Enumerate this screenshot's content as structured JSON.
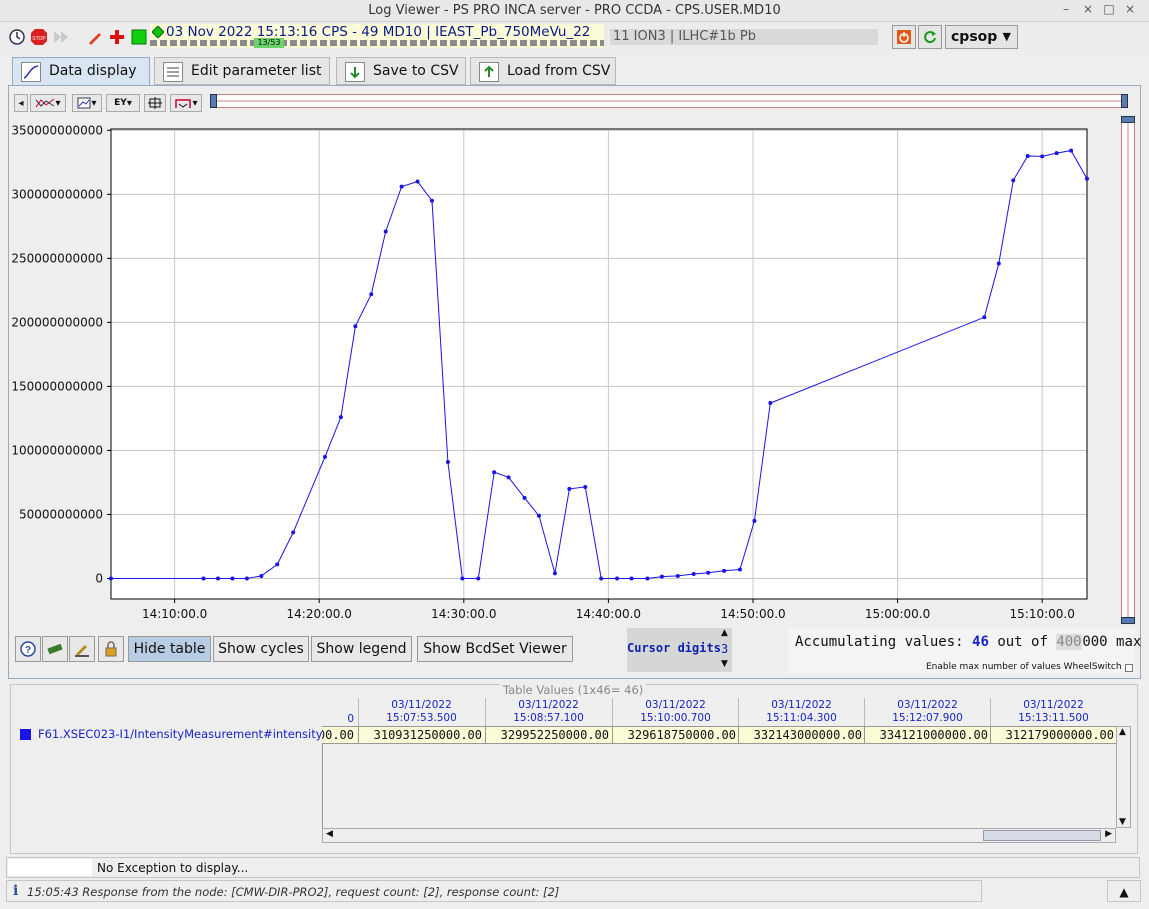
{
  "window": {
    "title": "Log Viewer - PS PRO INCA server - PRO CCDA  - CPS.USER.MD10",
    "controls": [
      "–",
      "×",
      "□",
      "×"
    ]
  },
  "toolbar": {
    "datetime": "03 Nov 2022  15:13:16  CPS - 49 MD10 | IEAST_Pb_750MeVu_22",
    "counter": "13/53",
    "user_group": "11 ION3 | ILHC#1b  Pb",
    "cpsop_label": "cpsop",
    "icons": [
      "clock-icon",
      "stop-icon",
      "forward-icon",
      "pen-icon",
      "plus-icon",
      "green-square-icon",
      "green-diamond-icon",
      "power-icon",
      "refresh-icon"
    ]
  },
  "tabs": [
    {
      "label": "Data display",
      "active": true
    },
    {
      "label": "Edit parameter list",
      "active": false
    },
    {
      "label": "Save to CSV",
      "active": false
    },
    {
      "label": "Load from CSV",
      "active": false
    }
  ],
  "chart_data": {
    "type": "line",
    "y_ticks": [
      "350000000000",
      "300000000000",
      "250000000000",
      "200000000000",
      "150000000000",
      "100000000000",
      "50000000000",
      "0"
    ],
    "x_ticks": [
      "14:10:00.0",
      "14:20:00.0",
      "14:30:00.0",
      "14:40:00.0",
      "14:50:00.0",
      "15:00:00.0",
      "15:10:00.0"
    ],
    "ylim": [
      -16000000000,
      351000000000
    ],
    "xlim_minutes": [
      5.6,
      73.1
    ],
    "grid": true,
    "series": [
      {
        "color": "#1a14e4",
        "points": [
          [
            5.6,
            0
          ],
          [
            12.0,
            0
          ],
          [
            13.0,
            0
          ],
          [
            14.0,
            0
          ],
          [
            15.0,
            0
          ],
          [
            16.0,
            2000000000
          ],
          [
            17.1,
            11000000000
          ],
          [
            18.2,
            36000000000
          ],
          [
            20.4,
            95000000000
          ],
          [
            21.5,
            126000000000
          ],
          [
            22.5,
            197000000000
          ],
          [
            23.6,
            222000000000
          ],
          [
            24.6,
            271000000000
          ],
          [
            25.7,
            306000000000
          ],
          [
            26.8,
            310000000000
          ],
          [
            27.8,
            295000000000
          ],
          [
            28.9,
            91000000000
          ],
          [
            29.9,
            0
          ],
          [
            31.0,
            0
          ],
          [
            32.1,
            83000000000
          ],
          [
            33.1,
            79000000000
          ],
          [
            34.2,
            63000000000
          ],
          [
            35.2,
            49000000000
          ],
          [
            36.3,
            4000000000
          ],
          [
            37.3,
            70000000000
          ],
          [
            38.4,
            71500000000
          ],
          [
            39.5,
            0
          ],
          [
            40.6,
            0
          ],
          [
            41.6,
            0
          ],
          [
            42.7,
            0
          ],
          [
            43.7,
            1500000000
          ],
          [
            44.8,
            2000000000
          ],
          [
            45.9,
            3500000000
          ],
          [
            46.9,
            4500000000
          ],
          [
            48.0,
            6000000000
          ],
          [
            49.1,
            7000000000
          ],
          [
            50.1,
            45000000000
          ],
          [
            51.2,
            137000000000
          ],
          [
            66.0,
            204000000000
          ],
          [
            67.0,
            246000000000
          ],
          [
            68.0,
            310931250000
          ],
          [
            69.0,
            329952250000
          ],
          [
            70.0,
            329618750000
          ],
          [
            71.0,
            332143000000
          ],
          [
            72.0,
            334121000000
          ],
          [
            73.1,
            312179000000
          ]
        ]
      }
    ]
  },
  "bottom_bar": {
    "hide_table": "Hide table",
    "show_cycles": "Show cycles",
    "show_legend": "Show legend",
    "show_bcdset": "Show BcdSet Viewer",
    "cursor_digits_label": "Cursor digits",
    "cursor_digits_value": "3",
    "accum_prefix": "Accumulating values:",
    "accum_count": "46",
    "accum_outof": "out of",
    "accum_max_a": "400",
    "accum_max_b": "000 max",
    "enable_max": "Enable max number of values WheelSwitch"
  },
  "table": {
    "title": "Table Values (1x46= 46)",
    "row_label": "F61.XSEC023-I1/IntensityMeasurement#intensity",
    "partial_header": "0",
    "partial_value": "00.00",
    "columns": [
      {
        "date": "03/11/2022",
        "time": "15:07:53.500",
        "value": "310931250000.00"
      },
      {
        "date": "03/11/2022",
        "time": "15:08:57.100",
        "value": "329952250000.00"
      },
      {
        "date": "03/11/2022",
        "time": "15:10:00.700",
        "value": "329618750000.00"
      },
      {
        "date": "03/11/2022",
        "time": "15:11:04.300",
        "value": "332143000000.00"
      },
      {
        "date": "03/11/2022",
        "time": "15:12:07.900",
        "value": "334121000000.00"
      },
      {
        "date": "03/11/2022",
        "time": "15:13:11.500",
        "value": "312179000000.00"
      }
    ]
  },
  "exception": {
    "text": "No Exception to display..."
  },
  "status": {
    "text": "15:05:43 Response from the node: [CMW-DIR-PRO2], request count: [2], response count: [2]"
  }
}
